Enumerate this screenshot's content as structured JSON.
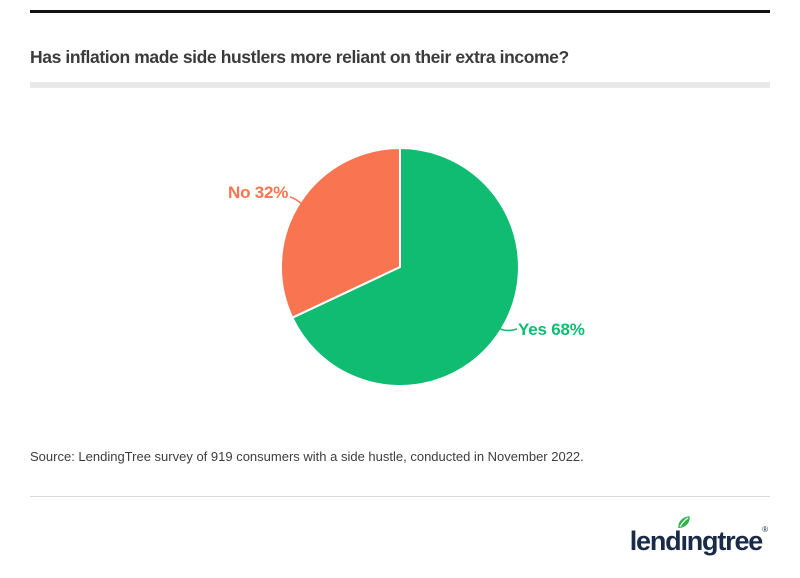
{
  "page": {
    "title": "Has inflation made side hustlers more reliant on their extra income?",
    "source": "Source: LendingTree survey of 919 consumers with a side hustle, conducted in November 2022.",
    "colors": {
      "green": "#10bc72",
      "orange": "#f97450",
      "title_text": "#3b3b3b",
      "top_rule": "#111111",
      "title_bar": "#e9e9e9",
      "footer_divider": "#d9d9d9",
      "logo_navy": "#1a2b49",
      "leaf_green": "#2eb24c"
    }
  },
  "chart_data": {
    "type": "pie",
    "title": "Has inflation made side hustlers more reliant on their extra income?",
    "slices": [
      {
        "label": "Yes",
        "value": 68,
        "display": "Yes 68%",
        "color": "#10bc72"
      },
      {
        "label": "No",
        "value": 32,
        "display": "No 32%",
        "color": "#f97450"
      }
    ],
    "start_angle_deg": 0,
    "direction": "clockwise",
    "legend": "none",
    "label_position": "outside-with-leader-lines",
    "slice_gap_color": "#ffffff"
  },
  "logo": {
    "brand": "lendingtree",
    "wordmark_pre": "lend",
    "wordmark_i": "ı",
    "wordmark_post": "ngtree",
    "registered": "®"
  }
}
